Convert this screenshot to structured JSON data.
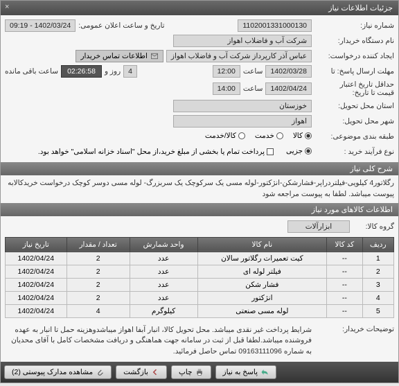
{
  "header": {
    "title": "جزئیات اطلاعات نیاز"
  },
  "form": {
    "fields": {
      "need_no": {
        "label": "شماره نیاز:",
        "value": "1102001331000130"
      },
      "public_announce": {
        "label": "تاریخ و ساعت اعلان عمومی:",
        "value": "1402/03/24 - 09:19"
      },
      "buyer": {
        "label": "نام دستگاه خریدار:",
        "value": "شرکت آب و فاضلاب اهواز"
      },
      "requester": {
        "label": "ایجاد کننده درخواست:",
        "value": "عباس آذر کارپرداز شرکت آب و فاضلاب اهواز"
      },
      "contact": {
        "label": "اطلاعات تماس خریدار"
      },
      "deadline": {
        "label": "مهلت ارسال پاسخ: تا",
        "date": "1402/03/28",
        "saat": "ساعت",
        "time": "12:00",
        "day": "4",
        "rv": "روز و",
        "countdown": "02:26:58",
        "remain": "ساعت باقی مانده"
      },
      "validity": {
        "label": "حداقل تاریخ اعتبار\nقیمت تا تاریخ:",
        "date": "1402/04/24",
        "saat": "ساعت",
        "time": "14:00"
      },
      "province": {
        "label": "استان محل تحویل:",
        "value": "خوزستان"
      },
      "city": {
        "label": "شهر محل تحویل:",
        "value": "اهواز"
      },
      "category": {
        "label": "طبقه بندی موضوعی:",
        "options": [
          {
            "label": "کالا",
            "on": true
          },
          {
            "label": "خدمت",
            "on": false
          },
          {
            "label": "کالا/خدمت",
            "on": false
          }
        ]
      },
      "purchase_type": {
        "label": "نوع فرآیند خرید :",
        "options": [
          {
            "label": "جزیی",
            "on": true
          }
        ],
        "cb_label": "پرداخت تمام یا بخشی از مبلغ خرید،از محل \"اسناد خزانه اسلامی\" خواهد بود."
      }
    }
  },
  "desc_section": {
    "header": "شرح کلی نیاز",
    "text": "رگلاتور4 کیلویی-فیلتردراپر-فشارشکن-انژکتور-لوله مسی یک سرکوچک یک سربزرگ- لوله مسی دوسر کوچک درخواست خریدکالابه پیوست میباشد. لطفا به پیوست مراجعه شود"
  },
  "items_section": {
    "header": "اطلاعات کالاهای مورد نیاز",
    "group_label": "گروه کالا:",
    "group_value": "ابزارآلات",
    "columns": [
      "ردیف",
      "کد کالا",
      "نام کالا",
      "واحد شمارش",
      "تعداد / مقدار",
      "تاریخ نیاز"
    ],
    "rows": [
      [
        "1",
        "--",
        "کیت تعمیرات رگلاتور سالان",
        "عدد",
        "2",
        "1402/04/24"
      ],
      [
        "2",
        "--",
        "فیلتر لوله ای",
        "عدد",
        "2",
        "1402/04/24"
      ],
      [
        "3",
        "--",
        "فشار شکن",
        "عدد",
        "2",
        "1402/04/24"
      ],
      [
        "4",
        "--",
        "انژکتور",
        "عدد",
        "2",
        "1402/04/24"
      ],
      [
        "5",
        "--",
        "لوله مسی صنعتی",
        "کیلوگرم",
        "4",
        "1402/04/24"
      ]
    ]
  },
  "buyer_notes": {
    "label": "توضیحات خریدار:",
    "text": "شرایط پرداخت غیر نقدی میباشد. محل تحویل کالا، انبار آبفا اهواز میباشدوهزینه حمل تا انبار به عهده فروشنده میباشد.لطفا قبل از ثبت در سامانه جهت هماهنگی و دریافت مشخصات کامل با آقای  محدیان به شماره 09163111096 تماس حاصل فرمائید."
  },
  "actions": {
    "reply": "پاسخ به نیاز",
    "print": "چاپ",
    "back": "بازگشت",
    "attach": "مشاهده مدارک پیوستی (2)"
  }
}
